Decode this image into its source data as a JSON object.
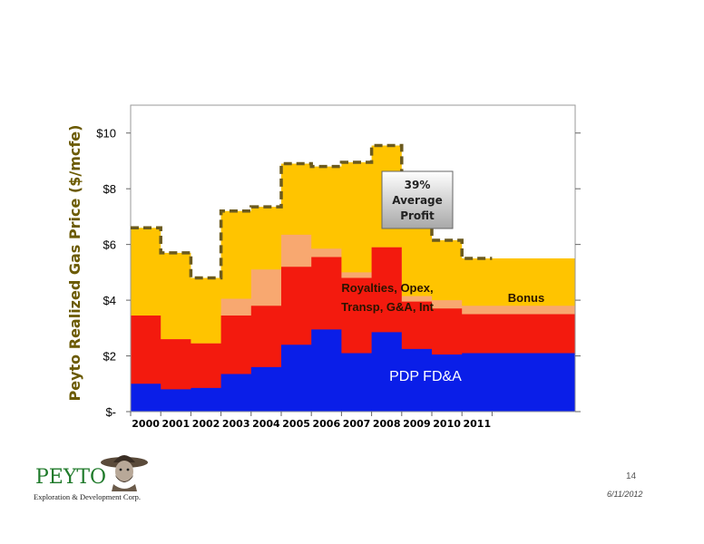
{
  "chart_data": {
    "type": "area",
    "ylabel": "Peyto Realized Gas Price ($/mcfe)",
    "ylim": [
      0,
      11
    ],
    "yticks": [
      {
        "value": 0,
        "label": "$-"
      },
      {
        "value": 2,
        "label": "$2"
      },
      {
        "value": 4,
        "label": "$4"
      },
      {
        "value": 6,
        "label": "$6"
      },
      {
        "value": 8,
        "label": "$8"
      },
      {
        "value": 10,
        "label": "$10"
      }
    ],
    "categories": [
      "2000",
      "2001",
      "2002",
      "2003",
      "2004",
      "2005",
      "2006",
      "2007",
      "2008",
      "2009",
      "2010",
      "2011"
    ],
    "stacked": true,
    "series": [
      {
        "name": "PDP FD&A",
        "color": "#0a1ee8",
        "values": [
          1.0,
          0.8,
          0.85,
          1.35,
          1.6,
          2.4,
          2.95,
          2.1,
          2.85,
          2.25,
          2.05,
          2.1
        ]
      },
      {
        "name": "Royalties, Opex, Transp, G&A, Int",
        "color": "#f31a0e",
        "values": [
          2.45,
          1.8,
          1.6,
          2.1,
          2.2,
          2.8,
          2.6,
          2.7,
          3.05,
          1.7,
          1.65,
          1.4
        ]
      },
      {
        "name": "Bonus",
        "color": "#f8a870",
        "values": [
          0,
          0,
          0,
          0.6,
          1.3,
          1.15,
          0.3,
          0.2,
          0,
          0.2,
          0.3,
          0.3
        ]
      },
      {
        "name": "39% Average Profit",
        "color": "#ffc400",
        "values": [
          3.15,
          3.1,
          2.35,
          3.15,
          2.25,
          2.55,
          2.95,
          3.95,
          3.65,
          2.65,
          2.15,
          1.7
        ]
      }
    ],
    "total_price_line": {
      "style": "dashed",
      "color": "#6b5a1e",
      "values": [
        6.6,
        5.7,
        4.8,
        7.2,
        7.35,
        8.9,
        8.8,
        8.95,
        9.55,
        6.8,
        6.15,
        5.5
      ]
    },
    "annotations": {
      "profit_box": [
        "39%",
        "Average",
        "Profit"
      ],
      "costs": [
        "Royalties, Opex,",
        "Transp, G&A, Int"
      ],
      "bonus": "Bonus",
      "pdp": "PDP FD&A"
    }
  },
  "footer": {
    "logo_name": "PEYTO",
    "logo_subtitle": "Exploration & Development Corp.",
    "page_number": "14",
    "date": "6/11/2012"
  }
}
